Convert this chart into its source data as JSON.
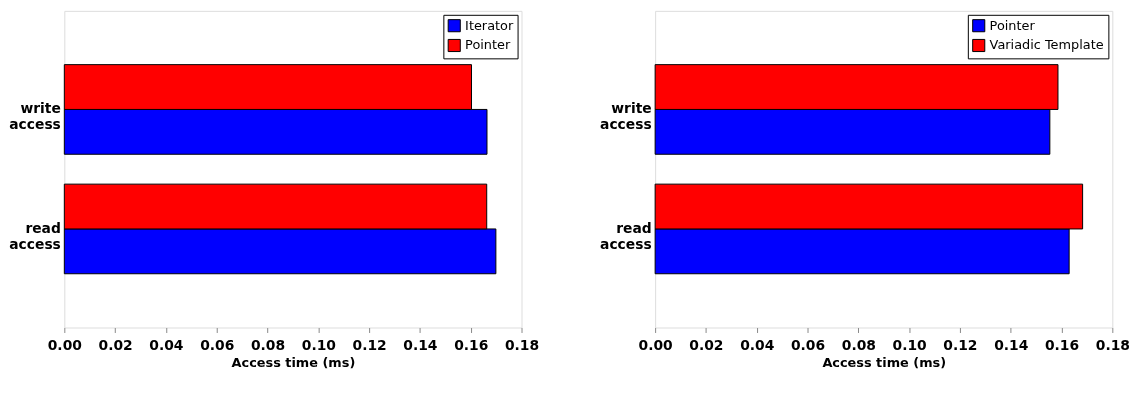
{
  "chart_data": [
    {
      "type": "bar",
      "orientation": "horizontal",
      "xlabel": "Access time (ms)",
      "categories": [
        "write access",
        "read access"
      ],
      "xlim": [
        0,
        0.18
      ],
      "xticks": [
        {
          "value": 0,
          "label": "0.00"
        },
        {
          "value": 0.02,
          "label": "0.02"
        },
        {
          "value": 0.04,
          "label": "0.04"
        },
        {
          "value": 0.06,
          "label": "0.06"
        },
        {
          "value": 0.08,
          "label": "0.08"
        },
        {
          "value": 0.1,
          "label": "0.10"
        },
        {
          "value": 0.12,
          "label": "0.12"
        },
        {
          "value": 0.14,
          "label": "0.14"
        },
        {
          "value": 0.16,
          "label": "0.16"
        },
        {
          "value": 0.18,
          "label": "0.18"
        }
      ],
      "legend": "top right",
      "grid": false,
      "series": [
        {
          "name": "Iterator",
          "color": "#0000ff",
          "values": [
            0.1664,
            0.1699
          ]
        },
        {
          "name": "Pointer",
          "color": "#ff0000",
          "values": [
            0.1603,
            0.1663
          ]
        }
      ]
    },
    {
      "type": "bar",
      "orientation": "horizontal",
      "xlabel": "Access time (ms)",
      "categories": [
        "write access",
        "read access"
      ],
      "xlim": [
        0,
        0.18
      ],
      "xticks": [
        {
          "value": 0,
          "label": "0.00"
        },
        {
          "value": 0.02,
          "label": "0.02"
        },
        {
          "value": 0.04,
          "label": "0.04"
        },
        {
          "value": 0.06,
          "label": "0.06"
        },
        {
          "value": 0.08,
          "label": "0.08"
        },
        {
          "value": 0.1,
          "label": "0.10"
        },
        {
          "value": 0.12,
          "label": "0.12"
        },
        {
          "value": 0.14,
          "label": "0.14"
        },
        {
          "value": 0.16,
          "label": "0.16"
        },
        {
          "value": 0.18,
          "label": "0.18"
        }
      ],
      "legend": "top right",
      "grid": false,
      "series": [
        {
          "name": "Pointer",
          "color": "#0000ff",
          "values": [
            0.1554,
            0.163
          ]
        },
        {
          "name": "Variadic Template",
          "color": "#ff0000",
          "values": [
            0.1586,
            0.1683
          ]
        }
      ]
    }
  ]
}
